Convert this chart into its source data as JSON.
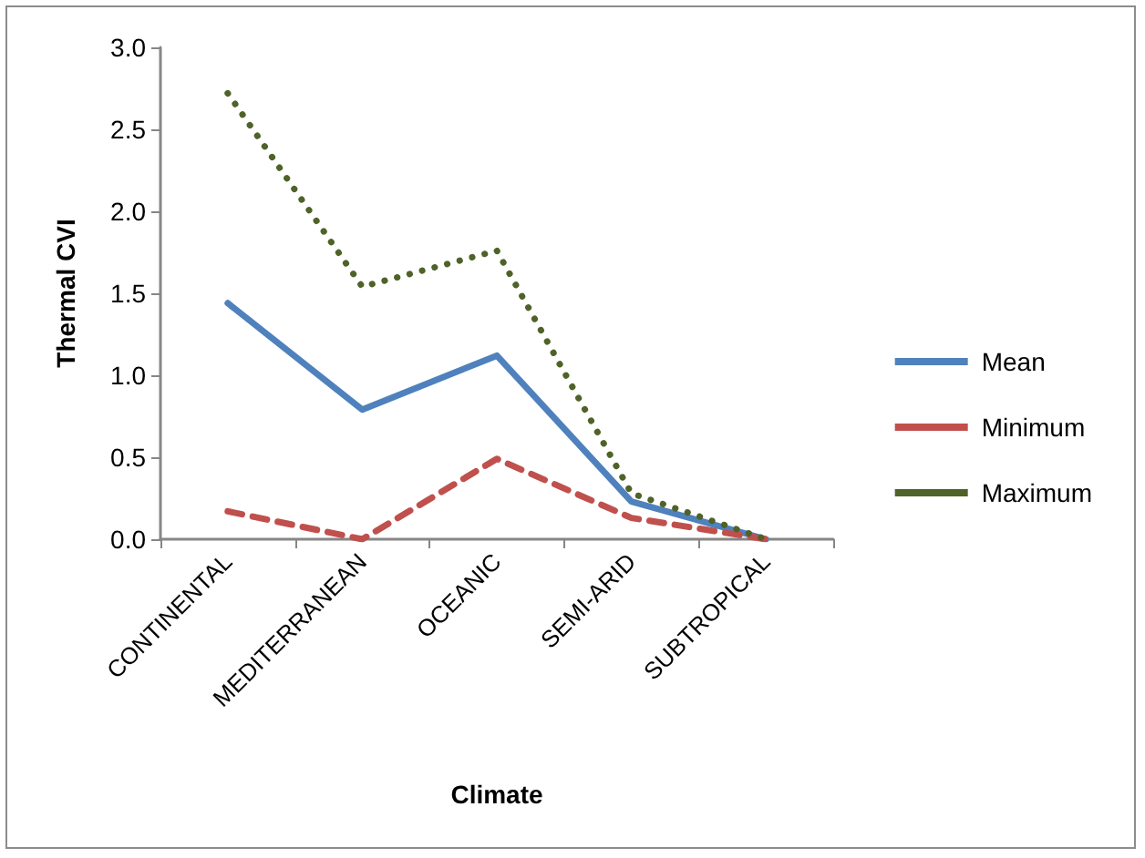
{
  "chart_data": {
    "type": "line",
    "xlabel": "Climate",
    "ylabel": "Thermal CVI",
    "categories": [
      "CONTINENTAL",
      "MEDITERRANEAN",
      "OCEANIC",
      "SEMI-ARID",
      "SUBTROPICAL"
    ],
    "series": [
      {
        "name": "Mean",
        "color": "#4f81bd",
        "line_style": "solid",
        "values": [
          1.44,
          0.79,
          1.12,
          0.23,
          0.0
        ]
      },
      {
        "name": "Minimum",
        "color": "#c0504d",
        "line_style": "dashed",
        "values": [
          0.17,
          0.0,
          0.49,
          0.13,
          0.0
        ]
      },
      {
        "name": "Maximum",
        "color": "#4f6228",
        "line_style": "dotted",
        "values": [
          2.72,
          1.54,
          1.76,
          0.28,
          0.0
        ]
      }
    ],
    "ylim": [
      0,
      3
    ],
    "yticks": [
      {
        "value": 0,
        "label": "0.0"
      },
      0.5,
      {
        "value": 1,
        "label": "1.0"
      },
      1.5,
      {
        "value": 2,
        "label": "2.0"
      },
      2.5,
      {
        "value": 3,
        "label": "3.0"
      }
    ],
    "grid": false,
    "legend": "right",
    "marker": "none"
  }
}
